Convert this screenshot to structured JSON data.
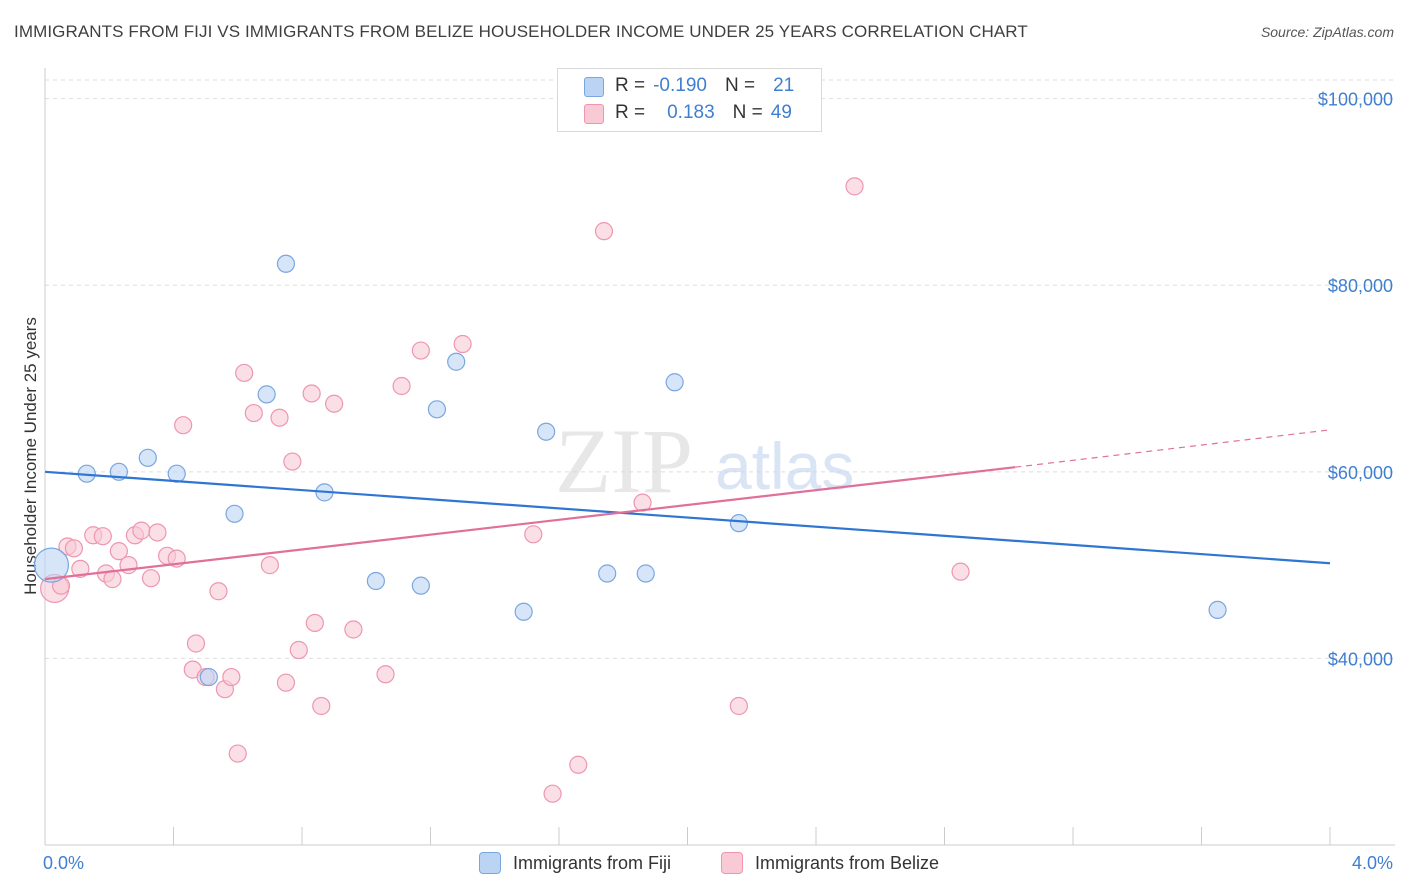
{
  "header": {
    "title": "IMMIGRANTS FROM FIJI VS IMMIGRANTS FROM BELIZE HOUSEHOLDER INCOME UNDER 25 YEARS CORRELATION CHART",
    "source": "Source: ZipAtlas.com"
  },
  "colors": {
    "fiji_fill": "#bcd4f4",
    "fiji_stroke": "#7aa6e0",
    "fiji_line": "#2f76d2",
    "belize_fill": "#f9c9d6",
    "belize_stroke": "#ee96b0",
    "belize_line": "#e0709a",
    "axis_text": "#3f7fd0",
    "grid": "#dedede"
  },
  "legend": {
    "fiji": {
      "r_label": "R =",
      "r_value": "-0.190",
      "n_label": "N =",
      "n_value": "21"
    },
    "belize": {
      "r_label": "R =",
      "r_value": "0.183",
      "n_label": "N =",
      "n_value": "49"
    }
  },
  "watermark": {
    "zip": "ZIP",
    "atlas": "atlas"
  },
  "chart_data": {
    "type": "scatter",
    "title": "IMMIGRANTS FROM FIJI VS IMMIGRANTS FROM BELIZE HOUSEHOLDER INCOME UNDER 25 YEARS CORRELATION CHART",
    "xlabel": "",
    "ylabel": "Householder Income Under 25 years",
    "xlim": [
      0.0,
      4.0
    ],
    "ylim": [
      20000,
      102000
    ],
    "x_tick_labels": [
      "0.0%",
      "4.0%"
    ],
    "y_ticks": [
      40000,
      60000,
      80000,
      100000
    ],
    "y_tick_labels": [
      "$40,000",
      "$60,000",
      "$80,000",
      "$100,000"
    ],
    "grid": true,
    "series": [
      {
        "name": "Immigrants from Fiji",
        "r": -0.19,
        "n": 21,
        "trend": {
          "x": [
            0.0,
            4.0
          ],
          "y": [
            60000,
            50200
          ]
        },
        "points": [
          {
            "x": 0.02,
            "y": 50000,
            "big": true
          },
          {
            "x": 0.13,
            "y": 59800
          },
          {
            "x": 0.23,
            "y": 60000
          },
          {
            "x": 0.32,
            "y": 61500
          },
          {
            "x": 0.41,
            "y": 59800
          },
          {
            "x": 0.59,
            "y": 55500
          },
          {
            "x": 0.51,
            "y": 38000
          },
          {
            "x": 0.69,
            "y": 68300
          },
          {
            "x": 0.75,
            "y": 82300
          },
          {
            "x": 0.87,
            "y": 57800
          },
          {
            "x": 1.03,
            "y": 48300
          },
          {
            "x": 1.17,
            "y": 47800
          },
          {
            "x": 1.22,
            "y": 66700
          },
          {
            "x": 1.28,
            "y": 71800
          },
          {
            "x": 1.49,
            "y": 45000
          },
          {
            "x": 1.56,
            "y": 64300
          },
          {
            "x": 1.75,
            "y": 49100
          },
          {
            "x": 1.87,
            "y": 49100
          },
          {
            "x": 1.96,
            "y": 69600
          },
          {
            "x": 2.16,
            "y": 54500
          },
          {
            "x": 3.65,
            "y": 45200
          }
        ]
      },
      {
        "name": "Immigrants from Belize",
        "r": 0.183,
        "n": 49,
        "trend": {
          "x": [
            0.0,
            3.02
          ],
          "y": [
            48500,
            60500
          ]
        },
        "trend_extended": {
          "x": [
            3.02,
            4.0
          ],
          "y": [
            60500,
            64500
          ]
        },
        "points": [
          {
            "x": 0.03,
            "y": 47500,
            "big": true
          },
          {
            "x": 0.05,
            "y": 47800
          },
          {
            "x": 0.07,
            "y": 52000
          },
          {
            "x": 0.09,
            "y": 51800
          },
          {
            "x": 0.11,
            "y": 49600
          },
          {
            "x": 0.15,
            "y": 53200
          },
          {
            "x": 0.18,
            "y": 53100
          },
          {
            "x": 0.19,
            "y": 49100
          },
          {
            "x": 0.21,
            "y": 48500
          },
          {
            "x": 0.23,
            "y": 51500
          },
          {
            "x": 0.26,
            "y": 50000
          },
          {
            "x": 0.28,
            "y": 53200
          },
          {
            "x": 0.3,
            "y": 53700
          },
          {
            "x": 0.33,
            "y": 48600
          },
          {
            "x": 0.35,
            "y": 53500
          },
          {
            "x": 0.38,
            "y": 51000
          },
          {
            "x": 0.41,
            "y": 50700
          },
          {
            "x": 0.43,
            "y": 65000
          },
          {
            "x": 0.46,
            "y": 38800
          },
          {
            "x": 0.47,
            "y": 41600
          },
          {
            "x": 0.5,
            "y": 38000
          },
          {
            "x": 0.54,
            "y": 47200
          },
          {
            "x": 0.56,
            "y": 36700
          },
          {
            "x": 0.58,
            "y": 38000
          },
          {
            "x": 0.6,
            "y": 29800
          },
          {
            "x": 0.62,
            "y": 70600
          },
          {
            "x": 0.65,
            "y": 66300
          },
          {
            "x": 0.7,
            "y": 50000
          },
          {
            "x": 0.73,
            "y": 65800
          },
          {
            "x": 0.75,
            "y": 37400
          },
          {
            "x": 0.77,
            "y": 61100
          },
          {
            "x": 0.79,
            "y": 40900
          },
          {
            "x": 0.83,
            "y": 68400
          },
          {
            "x": 0.84,
            "y": 43800
          },
          {
            "x": 0.86,
            "y": 34900
          },
          {
            "x": 0.9,
            "y": 67300
          },
          {
            "x": 0.96,
            "y": 43100
          },
          {
            "x": 1.06,
            "y": 38300
          },
          {
            "x": 1.11,
            "y": 69200
          },
          {
            "x": 1.17,
            "y": 73000
          },
          {
            "x": 1.3,
            "y": 73700
          },
          {
            "x": 1.52,
            "y": 53300
          },
          {
            "x": 1.58,
            "y": 25500
          },
          {
            "x": 1.66,
            "y": 28600
          },
          {
            "x": 1.74,
            "y": 85800
          },
          {
            "x": 1.86,
            "y": 56700
          },
          {
            "x": 2.16,
            "y": 34900
          },
          {
            "x": 2.52,
            "y": 90600
          },
          {
            "x": 2.85,
            "y": 49300
          }
        ]
      }
    ]
  },
  "bottom_legend": {
    "fiji_label": "Immigrants from Fiji",
    "belize_label": "Immigrants from Belize"
  }
}
